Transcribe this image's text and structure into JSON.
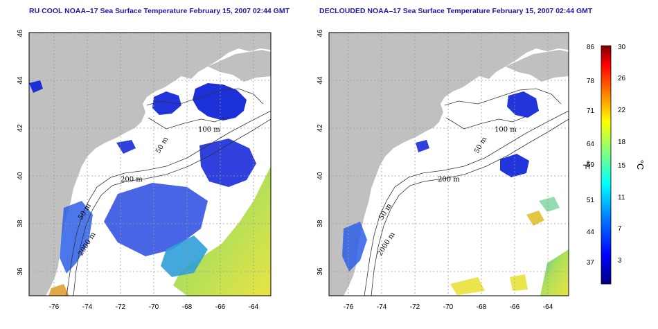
{
  "panels": [
    {
      "title": "RU COOL NOAA–17 Sea Surface Temperature February 15, 2007 02:44 GMT",
      "x_ticks": [
        "-76",
        "-74",
        "-72",
        "-70",
        "-68",
        "-66",
        "-64"
      ],
      "y_ticks": [
        "46",
        "44",
        "42",
        "40",
        "38",
        "36"
      ],
      "contour_labels": [
        "100 m",
        "50 m",
        "200 m",
        "50 m",
        "2000 m"
      ]
    },
    {
      "title": "DECLOUDED NOAA–17 Sea Surface Temperature February 15, 2007 02:44 GMT",
      "x_ticks": [
        "-76",
        "-74",
        "-72",
        "-70",
        "-68",
        "-66",
        "-64"
      ],
      "y_ticks": [
        "46",
        "44",
        "42",
        "40",
        "38",
        "36"
      ],
      "contour_labels": [
        "100 m",
        "50 m",
        "200 m",
        "50 m",
        "2000 m"
      ]
    }
  ],
  "colorbar": {
    "fahrenheit_labels": [
      "86",
      "78",
      "71",
      "64",
      "59",
      "51",
      "44",
      "37"
    ],
    "celsius_labels": [
      "30",
      "26",
      "22",
      "18",
      "15",
      "11",
      "7",
      "3"
    ],
    "unit_left": "°F",
    "unit_right": "°C",
    "colors": [
      "#00007f",
      "#0000ff",
      "#007fff",
      "#00ffff",
      "#7fff7f",
      "#ffff00",
      "#ff7f00",
      "#ff0000",
      "#7f0000"
    ]
  },
  "map_colors": {
    "land": "#c0c0c0",
    "ocean": "#ffffff",
    "grid": "#9a9a9a",
    "cold": "#0a1fd6",
    "mid": "#2f8fd8",
    "warm": "#c8e24a"
  }
}
